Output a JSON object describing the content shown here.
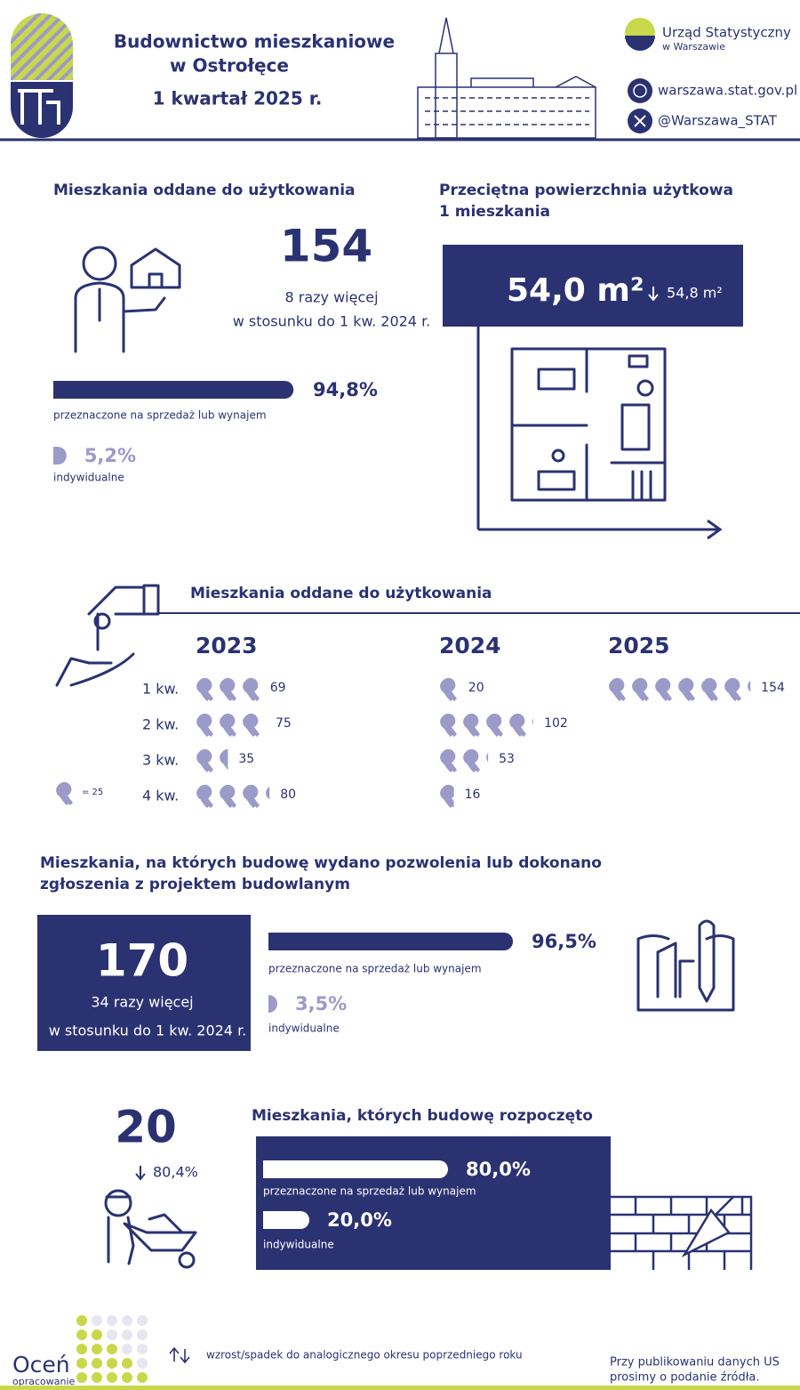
{
  "header": {
    "title_line1": "Budownictwo mieszkaniowe",
    "title_line2": "w Ostrołęce",
    "period": "1 kwartał 2025 r.",
    "org_name": "Urząd Statystyczny",
    "org_sub": "w Warszawie",
    "website": "warszawa.stat.gov.pl",
    "twitter": "@Warszawa_STAT"
  },
  "completed": {
    "title": "Mieszkania oddane do użytkowania",
    "count": 154,
    "comparison_line1": "8 razy więcej",
    "comparison_line2": "w stosunku do 1 kw. 2024 r.",
    "shares": [
      {
        "value": 94.8,
        "label": "94,8%",
        "name": "przeznaczone na sprzedaż lub wynajem"
      },
      {
        "value": 5.2,
        "label": "5,2%",
        "name": "indywidualne"
      }
    ]
  },
  "area": {
    "title_line1": "Przeciętna powierzchnia użytkowa",
    "title_line2": "1 mieszkania",
    "value": "54,0 m²",
    "previous": "54,8 m²"
  },
  "quarterly": {
    "title": "Mieszkania oddane do użytkowania",
    "key": {
      "value": 25,
      "label": "= 25"
    },
    "quarters": [
      "1 kw.",
      "2 kw.",
      "3 kw.",
      "4 kw."
    ],
    "years": [
      {
        "year": "2023",
        "values": [
          69,
          75,
          35,
          80
        ]
      },
      {
        "year": "2024",
        "values": [
          20,
          102,
          53,
          16
        ]
      },
      {
        "year": "2025",
        "values": [
          154
        ]
      }
    ]
  },
  "permits": {
    "title_line1": "Mieszkania, na których budowę wydano pozwolenia lub dokonano",
    "title_line2": "zgłoszenia z projektem budowlanym",
    "count": 170,
    "comparison_line1": "34 razy więcej",
    "comparison_line2": "w stosunku do 1 kw. 2024 r.",
    "shares": [
      {
        "value": 96.5,
        "label": "96,5%",
        "name": "przeznaczone na sprzedaż lub wynajem"
      },
      {
        "value": 3.5,
        "label": "3,5%",
        "name": "indywidualne"
      }
    ]
  },
  "started": {
    "title": "Mieszkania, których budowę rozpoczęto",
    "count": 20,
    "change": "80,4%",
    "shares": [
      {
        "value": 80.0,
        "label": "80,0%",
        "name": "przeznaczone na sprzedaż lub wynajem"
      },
      {
        "value": 20.0,
        "label": "20,0%",
        "name": "indywidualne"
      }
    ]
  },
  "footer": {
    "rate_title": "Oceń",
    "rate_sub": "opracowanie",
    "legend": "wzrost/spadek do analogicznego okresu poprzedniego roku",
    "note_line1": "Przy publikowaniu danych US",
    "note_line2": "prosimy o podanie źródła."
  }
}
